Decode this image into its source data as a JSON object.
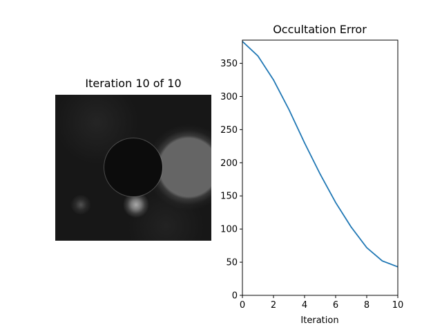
{
  "image_panel": {
    "title": "Iteration 10 of 10"
  },
  "chart_data": {
    "type": "line",
    "title": "Occultation Error",
    "xlabel": "Iteration",
    "ylabel": "",
    "xlim": [
      0,
      10
    ],
    "ylim": [
      0,
      385
    ],
    "xticks": [
      0,
      2,
      4,
      6,
      8,
      10
    ],
    "yticks": [
      0,
      50,
      100,
      150,
      200,
      250,
      300,
      350
    ],
    "grid": false,
    "series": [
      {
        "color": "#1f77b4",
        "x": [
          0,
          1,
          2,
          3,
          4,
          5,
          6,
          7,
          8,
          9,
          10
        ],
        "y": [
          383,
          361,
          325,
          280,
          230,
          183,
          140,
          103,
          72,
          52,
          43
        ]
      }
    ]
  }
}
